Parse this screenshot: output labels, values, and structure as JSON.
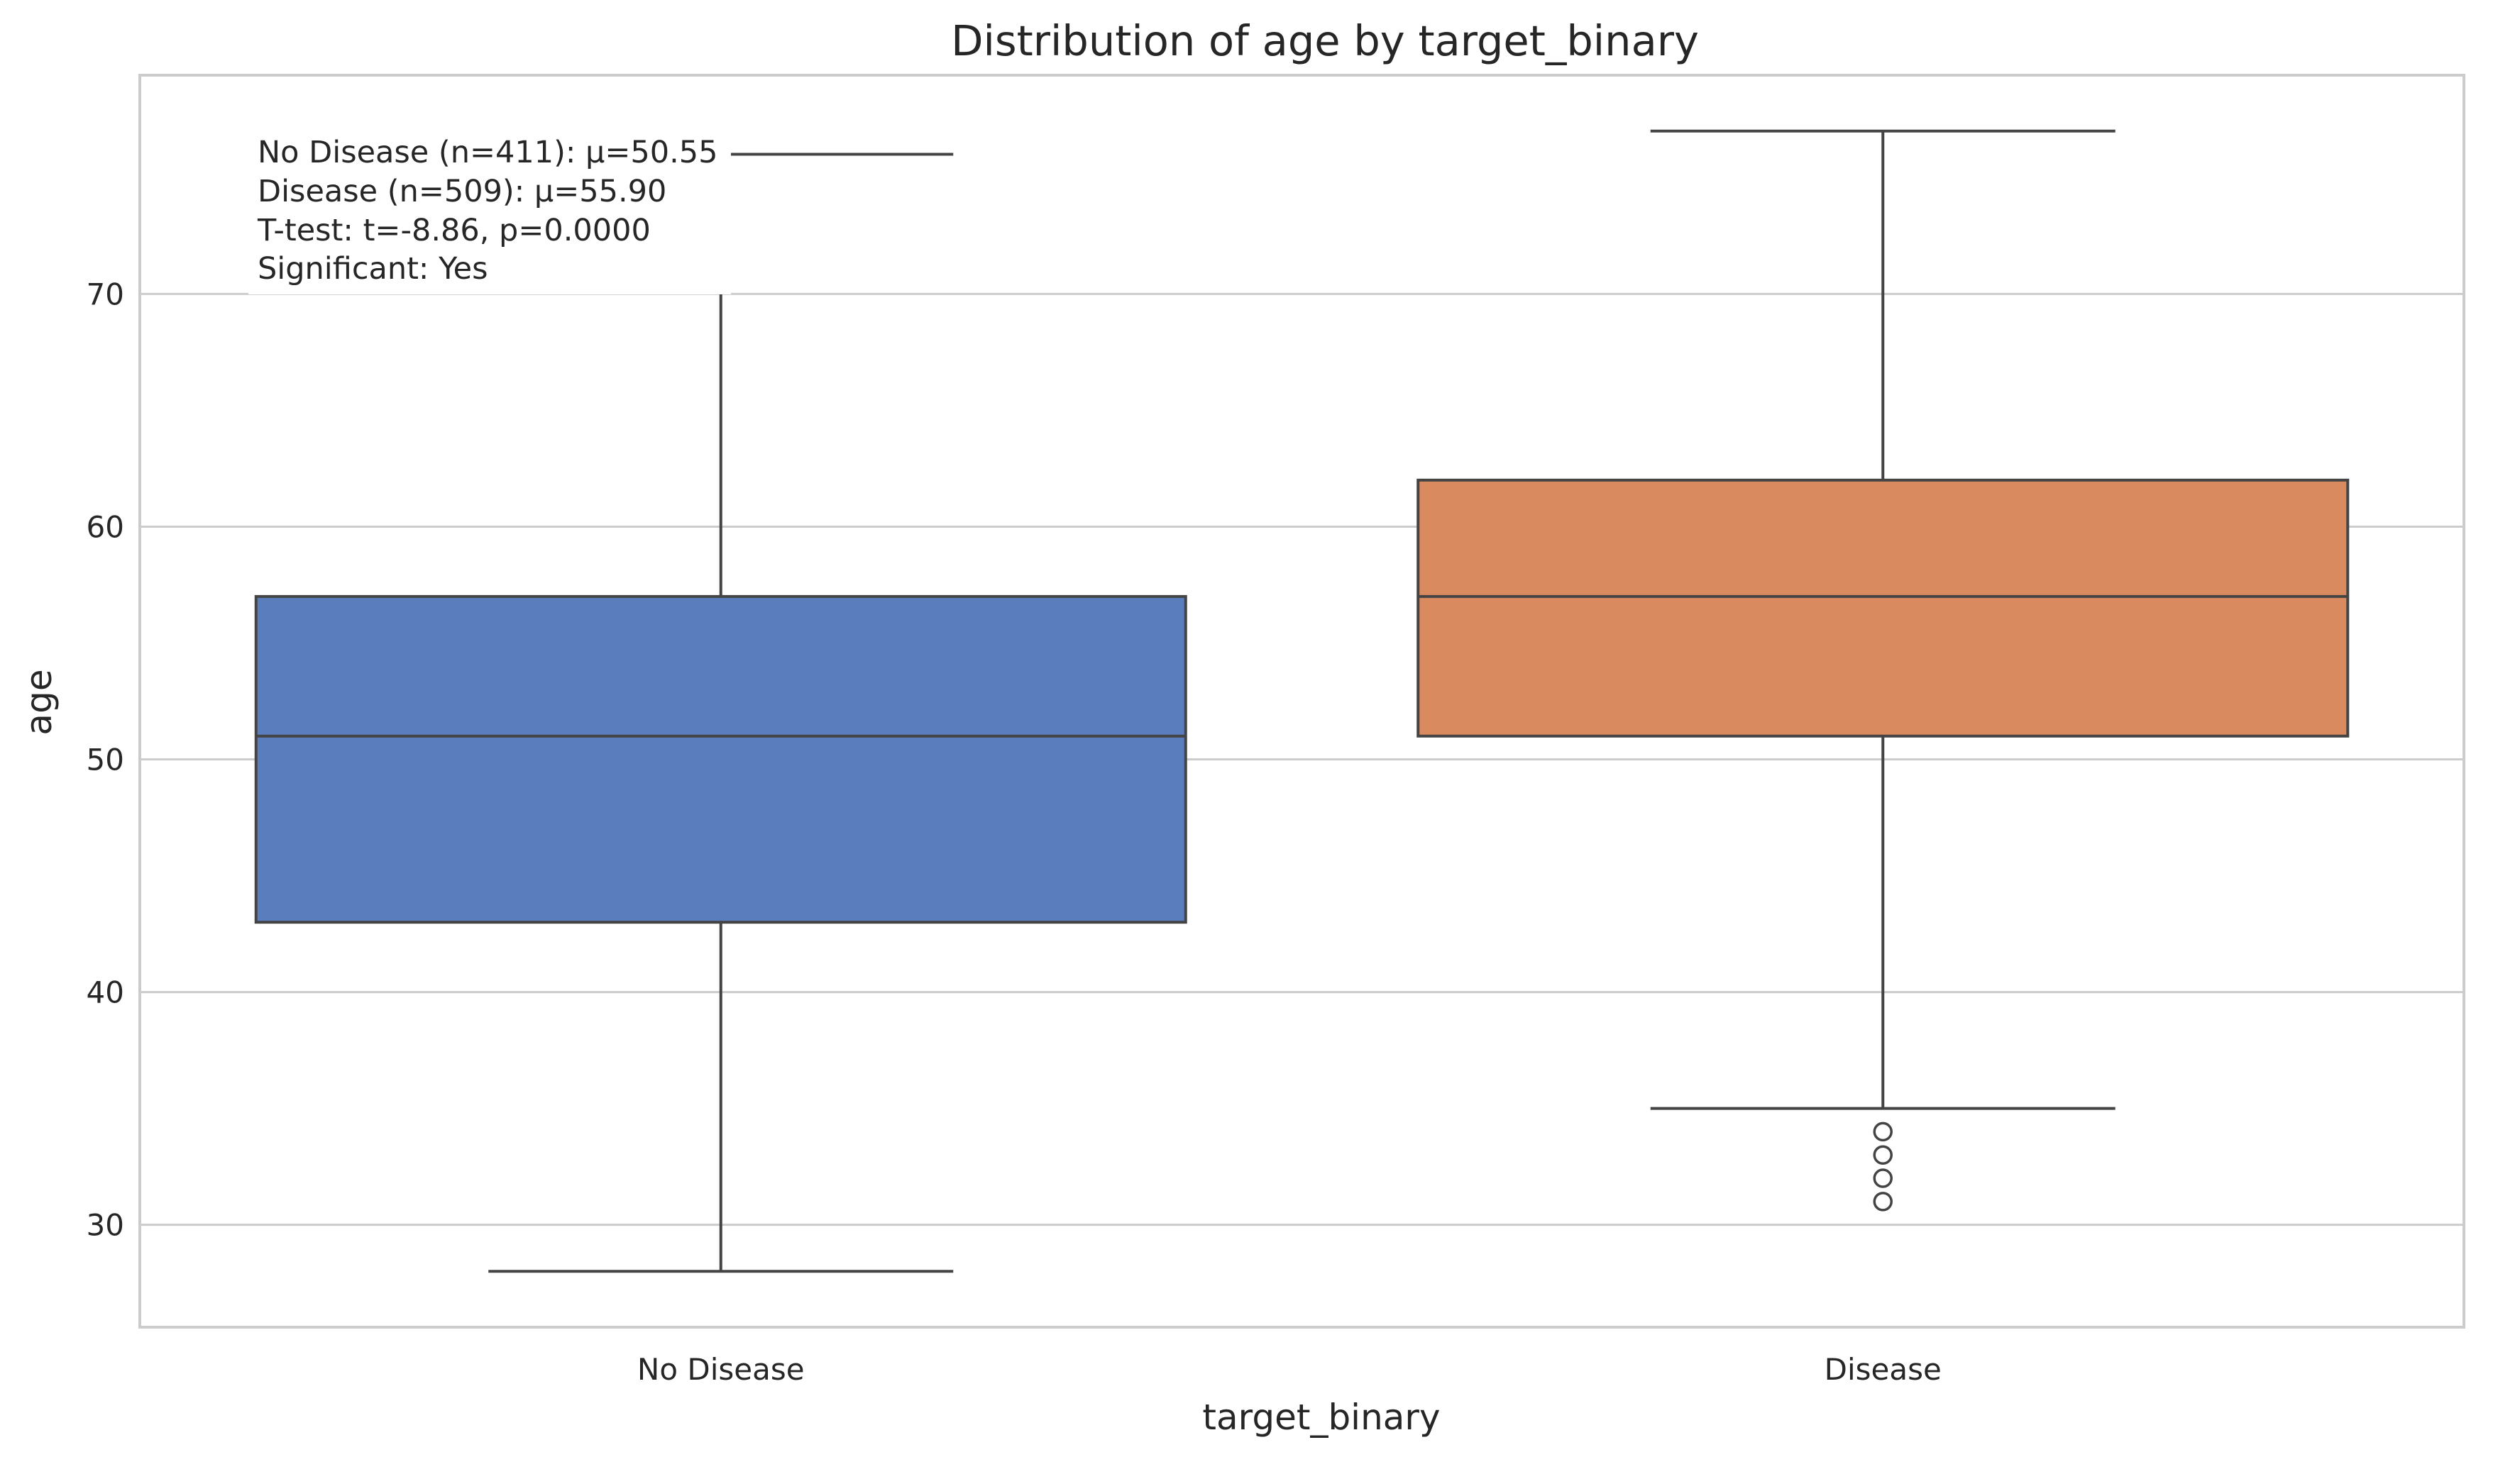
{
  "chart_data": {
    "type": "box",
    "title": "Distribution of age by target_binary",
    "xlabel": "target_binary",
    "ylabel": "age",
    "ylim": [
      25.6,
      79.4
    ],
    "yticks": [
      30,
      40,
      50,
      60,
      70
    ],
    "grid": true,
    "categories": [
      "No Disease",
      "Disease"
    ],
    "colors": [
      "#5a7dbe",
      "#d98a5f"
    ],
    "series": [
      {
        "category": "No Disease",
        "whisker_low": 28,
        "q1": 43,
        "median": 51,
        "q3": 57,
        "whisker_high": 76,
        "outliers": []
      },
      {
        "category": "Disease",
        "whisker_low": 35,
        "q1": 51,
        "median": 57,
        "q3": 62,
        "whisker_high": 77,
        "outliers": [
          31,
          32,
          33,
          34
        ]
      }
    ],
    "annotations": [
      "No Disease (n=411): μ=50.55",
      "Disease (n=509): μ=55.90",
      "T-test: t=-8.86, p=0.0000",
      "Significant: Yes"
    ]
  }
}
